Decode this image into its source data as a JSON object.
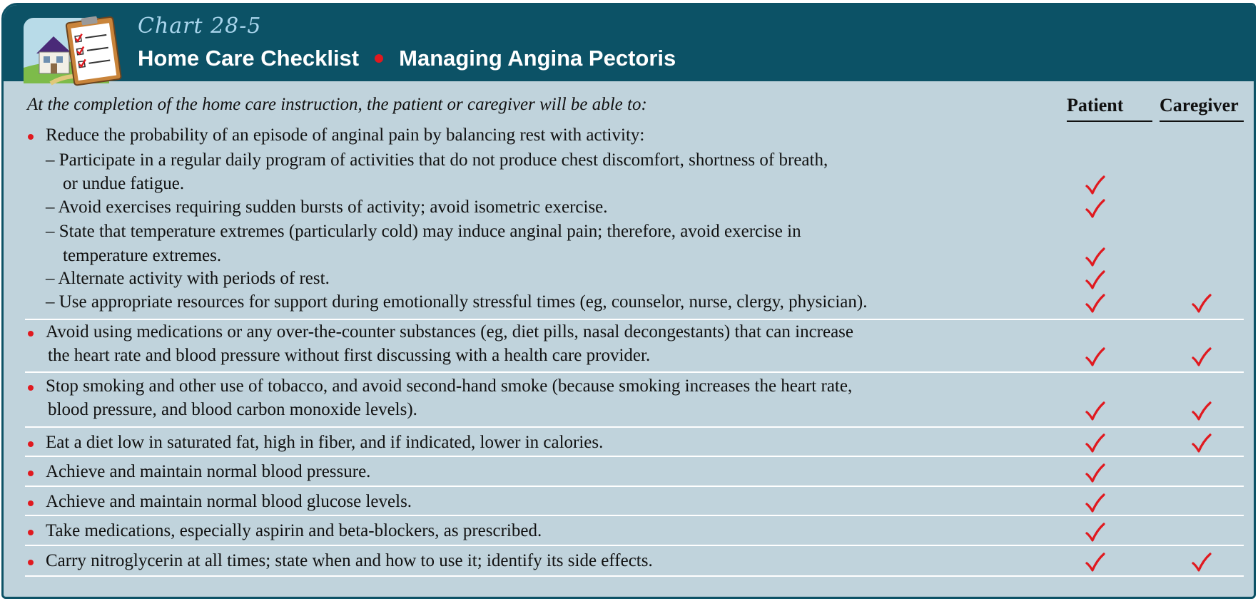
{
  "header": {
    "chart_number": "Chart 28-5",
    "title_left": "Home Care Checklist",
    "title_right": "Managing Angina Pectoris",
    "logo_icon": "house-with-clipboard-checklist-icon"
  },
  "intro": "At the completion of the home care instruction, the patient or caregiver will be able to:",
  "columns": {
    "patient": "Patient",
    "caregiver": "Caregiver"
  },
  "check_symbol": "check-mark-icon",
  "colors": {
    "header_bg": "#0c5266",
    "panel_bg": "#c0d3dc",
    "accent_red": "#e0191f",
    "chart_number": "#a9d5ec"
  },
  "sections": [
    {
      "lines": [
        "Reduce the probability of an episode of anginal pain by balancing rest with activity:",
        "– Participate in a regular daily program of activities that do not produce chest discomfort, shortness of breath,",
        "or undue fatigue.",
        "– Avoid exercises requiring sudden bursts of activity; avoid isometric exercise.",
        "– State that temperature extremes (particularly cold) may induce anginal pain; therefore, avoid exercise in",
        "temperature extremes.",
        "– Alternate activity with periods of rest.",
        "– Use appropriate resources for support during emotionally stressful times (eg, counselor, nurse, clergy, physician)."
      ]
    },
    {
      "lines": [
        "Avoid using medications or any over-the-counter substances (eg, diet pills, nasal decongestants) that can increase",
        "the heart rate and blood pressure without first discussing with a health care provider."
      ]
    },
    {
      "lines": [
        "Stop smoking and other use of tobacco, and avoid second-hand smoke (because smoking increases the heart rate,",
        "blood pressure, and blood carbon monoxide levels)."
      ]
    },
    {
      "lines": [
        "Eat a diet low in saturated fat, high in fiber, and if indicated, lower in calories."
      ]
    },
    {
      "lines": [
        "Achieve and maintain normal blood pressure."
      ]
    },
    {
      "lines": [
        "Achieve and maintain normal blood glucose levels."
      ]
    },
    {
      "lines": [
        "Take medications, especially aspirin and beta-blockers, as prescribed."
      ]
    },
    {
      "lines": [
        "Carry nitroglycerin at all times; state when and how to use it; identify its side effects."
      ]
    }
  ],
  "checks": [
    {
      "item": "Participate in a regular daily program",
      "patient": true,
      "caregiver": false
    },
    {
      "item": "Avoid exercises requiring sudden bursts",
      "patient": true,
      "caregiver": false
    },
    {
      "item": "Temperature extremes",
      "patient": true,
      "caregiver": false
    },
    {
      "item": "Alternate activity with periods of rest",
      "patient": true,
      "caregiver": false
    },
    {
      "item": "Use appropriate resources for support",
      "patient": true,
      "caregiver": true
    },
    {
      "item": "Avoid using medications",
      "patient": true,
      "caregiver": true
    },
    {
      "item": "Stop smoking",
      "patient": true,
      "caregiver": true
    },
    {
      "item": "Eat a diet low in saturated fat",
      "patient": true,
      "caregiver": true
    },
    {
      "item": "Normal blood pressure",
      "patient": true,
      "caregiver": false
    },
    {
      "item": "Normal blood glucose levels",
      "patient": true,
      "caregiver": false
    },
    {
      "item": "Take medications",
      "patient": true,
      "caregiver": false
    },
    {
      "item": "Carry nitroglycerin",
      "patient": true,
      "caregiver": true
    }
  ]
}
